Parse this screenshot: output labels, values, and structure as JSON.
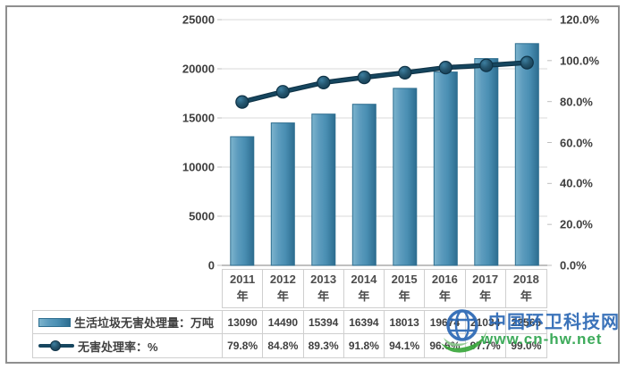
{
  "chart_data": {
    "type": "bar",
    "subtype": "bar+line combo, dual axis",
    "categories": [
      "2011\n年",
      "2012\n年",
      "2013\n年",
      "2014\n年",
      "2015\n年",
      "2016\n年",
      "2017\n年",
      "2018\n年"
    ],
    "series": [
      {
        "name": "生活垃圾无害处理量：万吨",
        "type": "bar",
        "axis": "left",
        "values": [
          13090,
          14490,
          15394,
          16394,
          18013,
          19674,
          21034,
          22565
        ]
      },
      {
        "name": "无害处理率：%",
        "type": "line",
        "axis": "right",
        "values": [
          79.8,
          84.8,
          89.3,
          91.8,
          94.1,
          96.6,
          97.7,
          99.0
        ]
      }
    ],
    "left_axis": {
      "min": 0,
      "max": 25000,
      "step": 5000,
      "ticks": [
        "25000",
        "20000",
        "15000",
        "10000",
        "5000",
        "0"
      ]
    },
    "right_axis": {
      "min": 0,
      "max": 120,
      "step": 20,
      "ticks": [
        "120.0%",
        "100.0%",
        "80.0%",
        "60.0%",
        "40.0%",
        "20.0%",
        "0.0%"
      ]
    },
    "grid": true,
    "legend_position": "data-table-left",
    "title": ""
  },
  "table": {
    "rows": [
      {
        "label": "生活垃圾无害处理量：万吨",
        "key": "bar",
        "values": [
          "13090",
          "14490",
          "15394",
          "16394",
          "18013",
          "19674",
          "21034",
          "22565"
        ]
      },
      {
        "label": "无害处理率：%",
        "key": "line",
        "values": [
          "79.8%",
          "84.8%",
          "89.3%",
          "91.8%",
          "94.1%",
          "96.6%",
          "97.7%",
          "99.0%"
        ]
      }
    ]
  },
  "watermark": {
    "site_name": "中国环卫科技网",
    "url": "www.cn-hw.net"
  },
  "colors": {
    "bar_fill": "#4e91b5",
    "bar_border": "#2e6e90",
    "line": "#16465f",
    "marker": "#173f57",
    "grid": "#d9d9d9",
    "axis_line": "#9a9a9a",
    "axis_text": "#3f3f3f",
    "table_border": "#cfcfcf",
    "watermark_blue": "#2b68b5",
    "watermark_green": "#2ea44e"
  }
}
